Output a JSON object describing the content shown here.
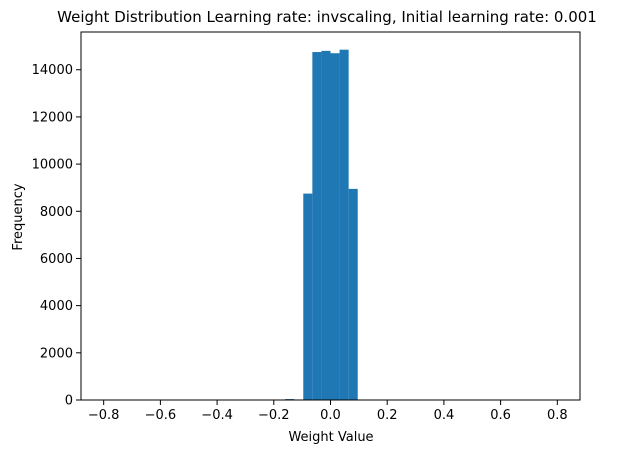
{
  "chart_data": {
    "type": "bar",
    "title": "Weight Distribution Learning rate: invscaling, Initial learning rate: 0.001",
    "xlabel": "Weight Value",
    "ylabel": "Frequency",
    "xlim": [
      -0.88,
      0.88
    ],
    "ylim": [
      0,
      15600
    ],
    "grid": false,
    "bar_color": "#1f77b4",
    "xticks": [
      -0.8,
      -0.6,
      -0.4,
      -0.2,
      0.0,
      0.2,
      0.4,
      0.6,
      0.8
    ],
    "xtick_labels": [
      "−0.8",
      "−0.6",
      "−0.4",
      "−0.2",
      "0.0",
      "0.2",
      "0.4",
      "0.6",
      "0.8"
    ],
    "yticks": [
      0,
      2000,
      4000,
      6000,
      8000,
      10000,
      12000,
      14000
    ],
    "ytick_labels": [
      "0",
      "2000",
      "4000",
      "6000",
      "8000",
      "10000",
      "12000",
      "14000"
    ],
    "bins": [
      {
        "x0": -0.8,
        "x1": -0.768,
        "value": 2
      },
      {
        "x0": -0.16,
        "x1": -0.128,
        "value": 40
      },
      {
        "x0": -0.096,
        "x1": -0.064,
        "value": 8750
      },
      {
        "x0": -0.064,
        "x1": -0.032,
        "value": 14750
      },
      {
        "x0": -0.032,
        "x1": 0.0,
        "value": 14800
      },
      {
        "x0": 0.0,
        "x1": 0.032,
        "value": 14700
      },
      {
        "x0": 0.032,
        "x1": 0.064,
        "value": 14850
      },
      {
        "x0": 0.064,
        "x1": 0.096,
        "value": 8950
      },
      {
        "x0": 0.768,
        "x1": 0.8,
        "value": 3
      }
    ]
  }
}
